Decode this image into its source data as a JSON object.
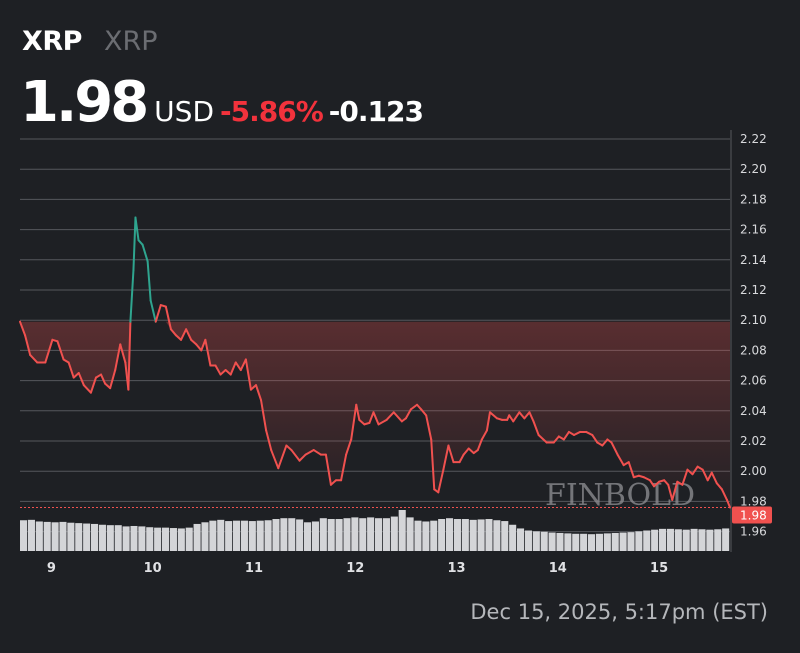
{
  "header": {
    "symbol": "XRP",
    "name": "XRP",
    "price": "1.98",
    "currency": "USD",
    "change_pct": "-5.86%",
    "change_abs": "-0.123"
  },
  "timestamp": "Dec 15, 2025, 5:17pm (EST)",
  "watermark": "FINBOLD",
  "colors": {
    "up": "#2fa58f",
    "down": "#f0514f",
    "grid": "#55575c",
    "volume": "#d4d5d8",
    "background": "#1e2024"
  },
  "chart_data": {
    "type": "line",
    "title": "",
    "xlabel": "",
    "ylabel": "",
    "ylim": [
      1.95,
      2.22
    ],
    "xlim": [
      8.69,
      15.7
    ],
    "grid": true,
    "yticks": [
      "1.96",
      "1.98",
      "2.00",
      "2.02",
      "2.04",
      "2.06",
      "2.08",
      "2.10",
      "2.12",
      "2.14",
      "2.16",
      "2.18",
      "2.20",
      "2.22"
    ],
    "xticks": [
      "9",
      "10",
      "11",
      "12",
      "13",
      "14",
      "15"
    ],
    "last_price_label": "1.98",
    "reference_price": 2.099,
    "series": [
      {
        "points": [
          [
            8.69,
            2.099
          ],
          [
            8.74,
            2.09
          ],
          [
            8.79,
            2.077
          ],
          [
            8.86,
            2.072
          ],
          [
            8.94,
            2.072
          ],
          [
            9.01,
            2.087
          ],
          [
            9.06,
            2.086
          ],
          [
            9.12,
            2.074
          ],
          [
            9.17,
            2.072
          ],
          [
            9.22,
            2.062
          ],
          [
            9.27,
            2.065
          ],
          [
            9.32,
            2.057
          ],
          [
            9.39,
            2.052
          ],
          [
            9.44,
            2.062
          ],
          [
            9.49,
            2.064
          ],
          [
            9.53,
            2.058
          ],
          [
            9.58,
            2.055
          ],
          [
            9.63,
            2.067
          ],
          [
            9.68,
            2.084
          ],
          [
            9.73,
            2.072
          ],
          [
            9.76,
            2.054
          ],
          [
            9.78,
            2.099
          ],
          [
            9.81,
            2.133
          ],
          [
            9.83,
            2.168
          ],
          [
            9.86,
            2.153
          ],
          [
            9.9,
            2.15
          ],
          [
            9.95,
            2.139
          ],
          [
            9.98,
            2.113
          ],
          [
            10.03,
            2.099
          ],
          [
            10.08,
            2.11
          ],
          [
            10.13,
            2.109
          ],
          [
            10.18,
            2.094
          ],
          [
            10.23,
            2.09
          ],
          [
            10.28,
            2.087
          ],
          [
            10.33,
            2.094
          ],
          [
            10.38,
            2.087
          ],
          [
            10.43,
            2.084
          ],
          [
            10.48,
            2.08
          ],
          [
            10.52,
            2.087
          ],
          [
            10.57,
            2.07
          ],
          [
            10.62,
            2.07
          ],
          [
            10.67,
            2.064
          ],
          [
            10.72,
            2.067
          ],
          [
            10.77,
            2.064
          ],
          [
            10.82,
            2.072
          ],
          [
            10.87,
            2.067
          ],
          [
            10.92,
            2.074
          ],
          [
            10.97,
            2.054
          ],
          [
            11.02,
            2.057
          ],
          [
            11.07,
            2.047
          ],
          [
            11.12,
            2.027
          ],
          [
            11.17,
            2.014
          ],
          [
            11.24,
            2.002
          ],
          [
            11.32,
            2.017
          ],
          [
            11.37,
            2.014
          ],
          [
            11.45,
            2.007
          ],
          [
            11.51,
            2.011
          ],
          [
            11.59,
            2.014
          ],
          [
            11.66,
            2.011
          ],
          [
            11.71,
            2.011
          ],
          [
            11.76,
            1.991
          ],
          [
            11.81,
            1.994
          ],
          [
            11.86,
            1.994
          ],
          [
            11.91,
            2.011
          ],
          [
            11.96,
            2.021
          ],
          [
            12.01,
            2.044
          ],
          [
            12.04,
            2.034
          ],
          [
            12.09,
            2.031
          ],
          [
            12.14,
            2.032
          ],
          [
            12.18,
            2.039
          ],
          [
            12.23,
            2.031
          ],
          [
            12.31,
            2.034
          ],
          [
            12.38,
            2.039
          ],
          [
            12.46,
            2.033
          ],
          [
            12.5,
            2.035
          ],
          [
            12.55,
            2.041
          ],
          [
            12.61,
            2.044
          ],
          [
            12.65,
            2.041
          ],
          [
            12.7,
            2.037
          ],
          [
            12.75,
            2.021
          ],
          [
            12.78,
            1.988
          ],
          [
            12.82,
            1.986
          ],
          [
            12.87,
            2.001
          ],
          [
            12.92,
            2.017
          ],
          [
            12.97,
            2.006
          ],
          [
            13.03,
            2.006
          ],
          [
            13.07,
            2.011
          ],
          [
            13.12,
            2.015
          ],
          [
            13.17,
            2.012
          ],
          [
            13.21,
            2.014
          ],
          [
            13.25,
            2.021
          ],
          [
            13.3,
            2.027
          ],
          [
            13.33,
            2.039
          ],
          [
            13.4,
            2.035
          ],
          [
            13.45,
            2.034
          ],
          [
            13.5,
            2.034
          ],
          [
            13.52,
            2.037
          ],
          [
            13.56,
            2.033
          ],
          [
            13.62,
            2.039
          ],
          [
            13.67,
            2.035
          ],
          [
            13.72,
            2.039
          ],
          [
            13.76,
            2.033
          ],
          [
            13.81,
            2.024
          ],
          [
            13.89,
            2.019
          ],
          [
            13.96,
            2.019
          ],
          [
            14.01,
            2.023
          ],
          [
            14.06,
            2.021
          ],
          [
            14.11,
            2.026
          ],
          [
            14.16,
            2.024
          ],
          [
            14.22,
            2.026
          ],
          [
            14.28,
            2.026
          ],
          [
            14.34,
            2.024
          ],
          [
            14.39,
            2.019
          ],
          [
            14.44,
            2.017
          ],
          [
            14.49,
            2.021
          ],
          [
            14.53,
            2.019
          ],
          [
            14.59,
            2.011
          ],
          [
            14.65,
            2.004
          ],
          [
            14.7,
            2.006
          ],
          [
            14.75,
            1.996
          ],
          [
            14.8,
            1.997
          ],
          [
            14.85,
            1.996
          ],
          [
            14.91,
            1.994
          ],
          [
            14.95,
            1.99
          ],
          [
            15.0,
            1.993
          ],
          [
            15.05,
            1.994
          ],
          [
            15.09,
            1.991
          ],
          [
            15.13,
            1.981
          ],
          [
            15.18,
            1.993
          ],
          [
            15.23,
            1.991
          ],
          [
            15.28,
            2.001
          ],
          [
            15.33,
            1.998
          ],
          [
            15.38,
            2.003
          ],
          [
            15.43,
            2.001
          ],
          [
            15.48,
            1.994
          ],
          [
            15.52,
            1.999
          ],
          [
            15.57,
            1.992
          ],
          [
            15.62,
            1.988
          ],
          [
            15.67,
            1.981
          ],
          [
            15.7,
            1.976
          ]
        ]
      }
    ],
    "volume_relative": [
      75,
      76,
      72,
      71,
      70,
      71,
      69,
      68,
      67,
      66,
      64,
      63,
      63,
      60,
      61,
      60,
      58,
      57,
      57,
      56,
      55,
      57,
      66,
      70,
      74,
      76,
      73,
      74,
      74,
      73,
      74,
      75,
      78,
      80,
      80,
      77,
      70,
      72,
      80,
      78,
      78,
      80,
      82,
      80,
      82,
      80,
      80,
      84,
      100,
      82,
      74,
      72,
      74,
      78,
      80,
      78,
      78,
      76,
      77,
      78,
      75,
      73,
      64,
      55,
      50,
      48,
      47,
      45,
      44,
      43,
      42,
      42,
      41,
      42,
      43,
      44,
      45,
      46,
      48,
      50,
      52,
      54,
      54,
      53,
      52,
      54,
      53,
      52,
      53,
      55
    ]
  }
}
